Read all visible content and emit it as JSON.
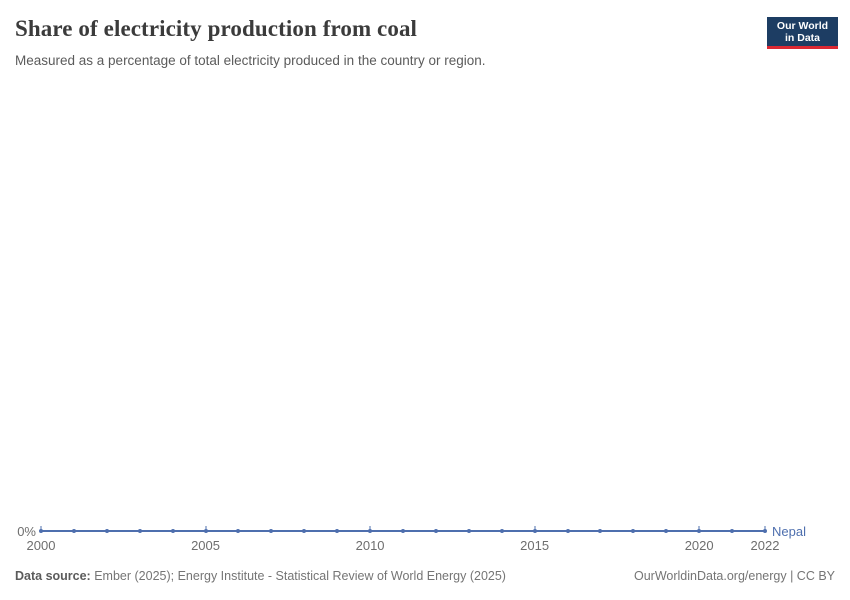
{
  "header": {
    "title": "Share of electricity production from coal",
    "subtitle": "Measured as a percentage of total electricity produced in the country or region."
  },
  "logo": {
    "line1": "Our World",
    "line2": "in Data",
    "background": "#1d3d63",
    "accent": "#dc2832"
  },
  "chart_data": {
    "type": "line",
    "title": "Share of electricity production from coal",
    "subtitle": "Measured as a percentage of total electricity produced in the country or region.",
    "xlabel": "",
    "ylabel": "",
    "unit": "%",
    "x": [
      2000,
      2001,
      2002,
      2003,
      2004,
      2005,
      2006,
      2007,
      2008,
      2009,
      2010,
      2011,
      2012,
      2013,
      2014,
      2015,
      2016,
      2017,
      2018,
      2019,
      2020,
      2021,
      2022
    ],
    "x_ticks": [
      2000,
      2005,
      2010,
      2015,
      2020,
      2022
    ],
    "y_axis_labels": [
      "0%"
    ],
    "ylim": [
      0,
      0
    ],
    "grid": false,
    "legend_position": "end-of-line",
    "series": [
      {
        "name": "Nepal",
        "color": "#4e6fae",
        "values": [
          0,
          0,
          0,
          0,
          0,
          0,
          0,
          0,
          0,
          0,
          0,
          0,
          0,
          0,
          0,
          0,
          0,
          0,
          0,
          0,
          0,
          0,
          0
        ]
      }
    ]
  },
  "axis": {
    "zero_label": "0%"
  },
  "footer": {
    "datasource_label": "Data source:",
    "datasource_value": "Ember (2025); Energy Institute - Statistical Review of World Energy (2025)",
    "right_text": "OurWorldinData.org/energy | CC BY"
  }
}
